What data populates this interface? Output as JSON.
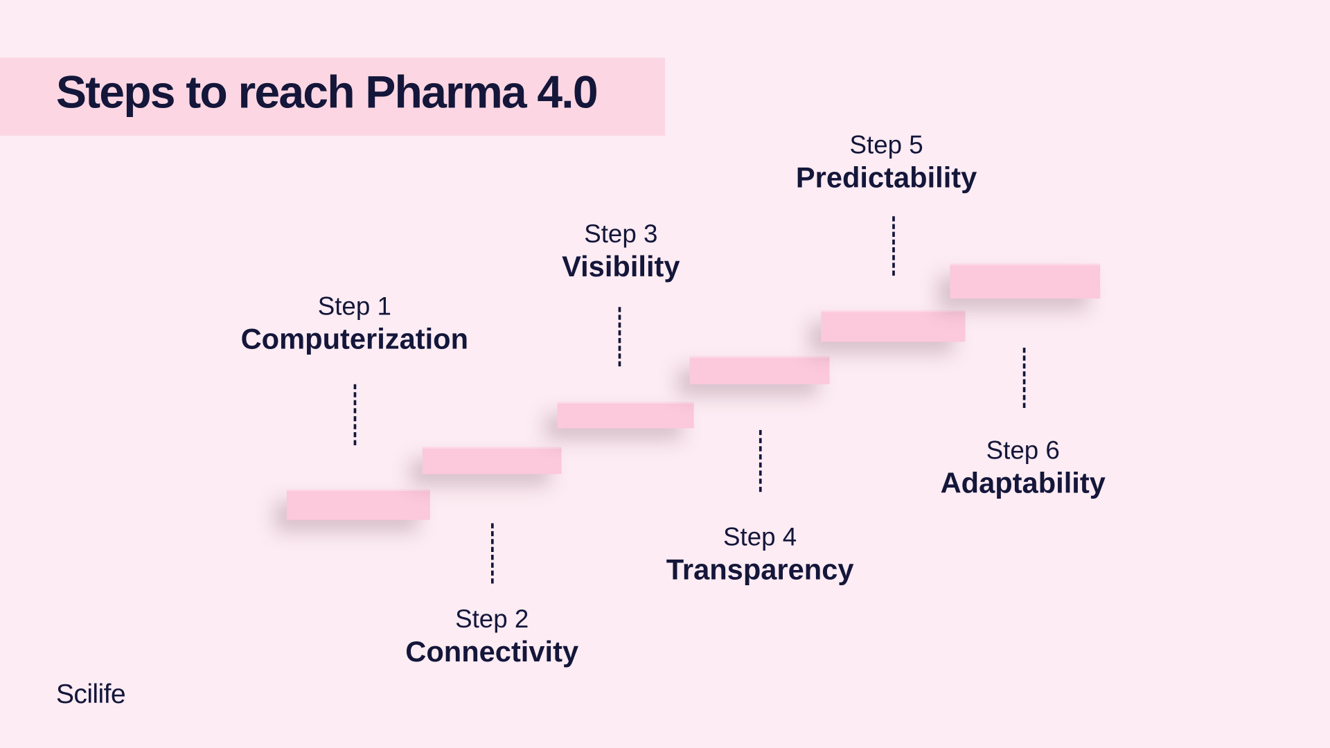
{
  "title": "Steps to reach Pharma 4.0",
  "logo": "Scilife",
  "steps": [
    {
      "step": "Step 1",
      "name": "Computerization"
    },
    {
      "step": "Step 2",
      "name": "Connectivity"
    },
    {
      "step": "Step 3",
      "name": "Visibility"
    },
    {
      "step": "Step 4",
      "name": "Transparency"
    },
    {
      "step": "Step 5",
      "name": "Predictability"
    },
    {
      "step": "Step 6",
      "name": "Adaptability"
    }
  ],
  "colors": {
    "background": "#fdecf3",
    "banner": "#fcd7e3",
    "step_block": "#fcc8dc",
    "text": "#14163a"
  }
}
